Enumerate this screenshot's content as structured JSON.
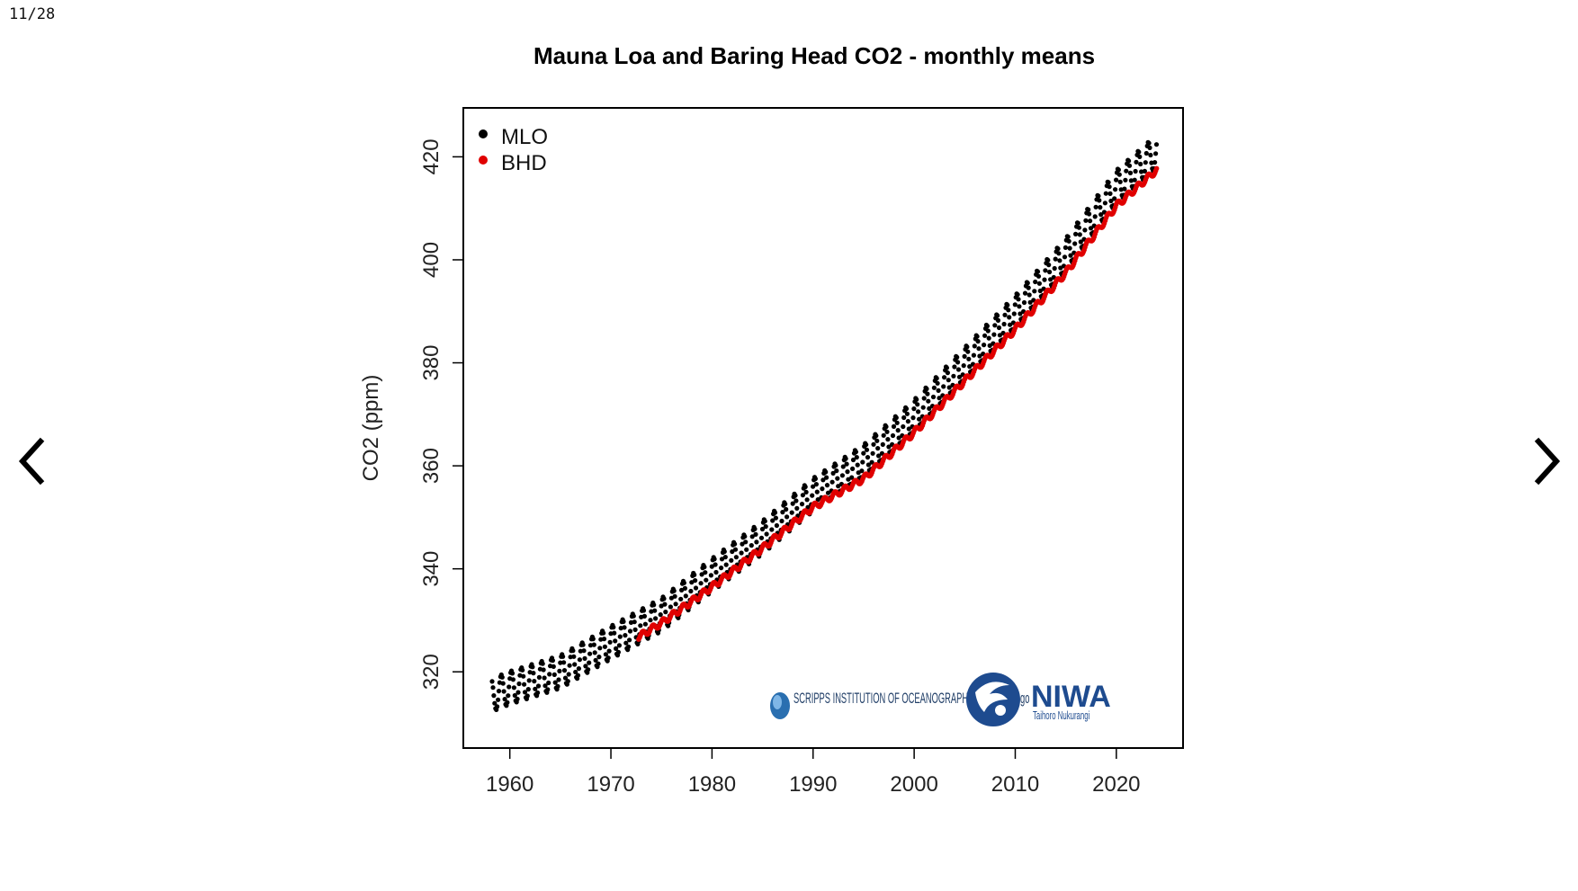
{
  "viewer": {
    "counter": "11/28",
    "prev_icon": "chevron-left-icon",
    "next_icon": "chevron-right-icon"
  },
  "logos": {
    "scripps": "SCRIPPS INSTITUTION OF OCEANOGRAPHY UC San Diego",
    "niwa": "NIWA",
    "niwa_sub": "Taihoro Nukurangi"
  },
  "chart_data": {
    "type": "scatter",
    "title": "Mauna Loa and Baring Head CO2 - monthly means",
    "xlabel": "",
    "ylabel": "CO2 (ppm)",
    "xlim": [
      1955.4,
      2026.6
    ],
    "ylim": [
      305.2,
      429.5
    ],
    "xticks": [
      1960,
      1970,
      1980,
      1990,
      2000,
      2010,
      2020
    ],
    "yticks": [
      320,
      340,
      360,
      380,
      400,
      420
    ],
    "grid": false,
    "legend_position": "top-left",
    "series": [
      {
        "name": "MLO",
        "color": "#000000",
        "x_start": 1958.25,
        "x_end": 2024.0,
        "step": 0.0833,
        "seasonal_amplitude": 3.2,
        "trend_points": [
          [
            1958,
            315.3
          ],
          [
            1960,
            316.9
          ],
          [
            1965,
            320.0
          ],
          [
            1970,
            325.7
          ],
          [
            1975,
            331.1
          ],
          [
            1980,
            338.8
          ],
          [
            1985,
            346.1
          ],
          [
            1990,
            354.4
          ],
          [
            1995,
            360.9
          ],
          [
            2000,
            369.6
          ],
          [
            2005,
            379.8
          ],
          [
            2010,
            389.9
          ],
          [
            2015,
            401.0
          ],
          [
            2020,
            414.2
          ],
          [
            2024,
            421.1
          ]
        ]
      },
      {
        "name": "BHD",
        "color": "#e00000",
        "x_start": 1972.75,
        "x_end": 2024.0,
        "step": 0.0833,
        "seasonal_amplitude": 0.6,
        "trend_points": [
          [
            1972.5,
            326.5
          ],
          [
            1975,
            329.5
          ],
          [
            1980,
            336.5
          ],
          [
            1985,
            344.0
          ],
          [
            1990,
            352.0
          ],
          [
            1995,
            357.5
          ],
          [
            2000,
            366.5
          ],
          [
            2005,
            376.5
          ],
          [
            2010,
            386.5
          ],
          [
            2015,
            397.5
          ],
          [
            2020,
            410.5
          ],
          [
            2024,
            417.5
          ]
        ]
      }
    ]
  }
}
